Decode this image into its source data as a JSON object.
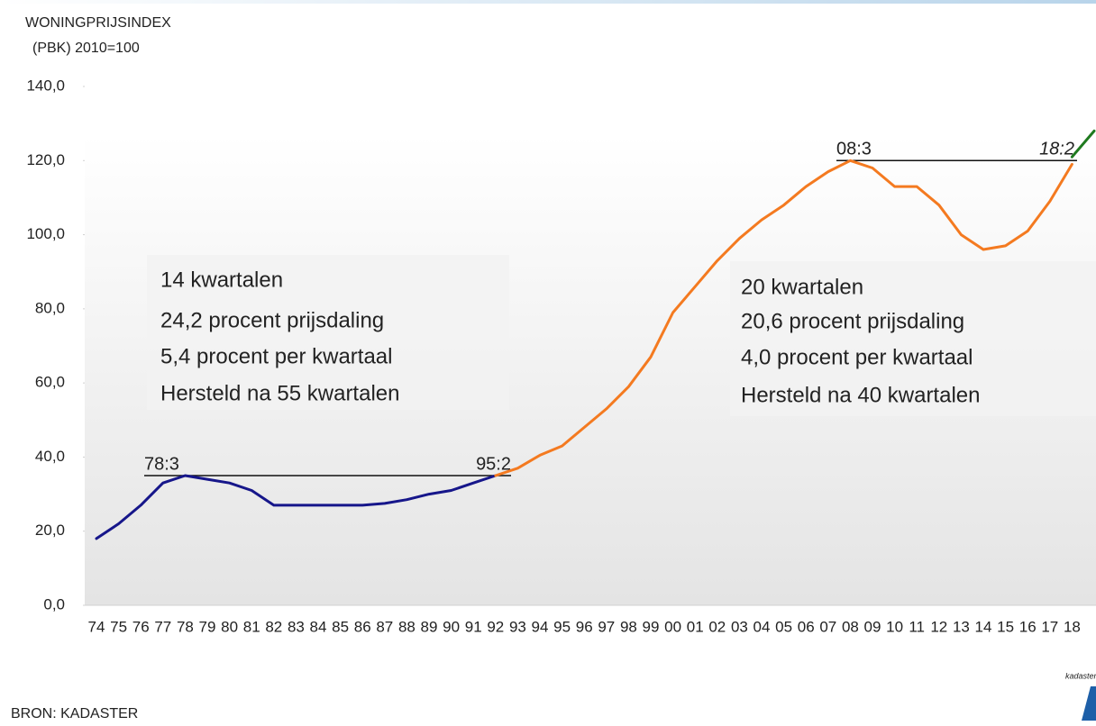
{
  "chart_data": {
    "type": "line",
    "axis_title_lines": [
      "WONINGPRIJSINDEX",
      "(PBK) 2010=100"
    ],
    "source": "BRON: KADASTER",
    "logo": "kadaster",
    "categories": [
      "74",
      "75",
      "76",
      "77",
      "78",
      "79",
      "80",
      "81",
      "82",
      "83",
      "84",
      "85",
      "86",
      "87",
      "88",
      "89",
      "90",
      "91",
      "92",
      "93",
      "94",
      "95",
      "96",
      "97",
      "98",
      "99",
      "00",
      "01",
      "02",
      "03",
      "04",
      "05",
      "06",
      "07",
      "08",
      "09",
      "10",
      "11",
      "12",
      "13",
      "14",
      "15",
      "16",
      "17",
      "18",
      null
    ],
    "series": [
      {
        "color": "#16168a",
        "values": [
          18,
          22,
          27,
          33,
          35,
          34,
          33,
          31,
          27,
          27,
          27,
          27,
          27,
          27.5,
          28.5,
          30,
          31,
          33,
          35,
          null,
          null,
          null,
          null,
          null,
          null,
          null,
          null,
          null,
          null,
          null,
          null,
          null,
          null,
          null,
          null,
          null,
          null,
          null,
          null,
          null,
          null,
          null,
          null,
          null,
          null,
          null
        ]
      },
      {
        "color": "#f47a20",
        "values": [
          null,
          null,
          null,
          null,
          null,
          null,
          null,
          null,
          null,
          null,
          null,
          null,
          null,
          null,
          null,
          null,
          null,
          null,
          35,
          37,
          40.5,
          43,
          48,
          53,
          59,
          67,
          79,
          86,
          93,
          99,
          104,
          108,
          113,
          117,
          120,
          118,
          113,
          113,
          108,
          100,
          96,
          97,
          101,
          109,
          119,
          null
        ]
      },
      {
        "color": "#1f7a1f",
        "values": [
          null,
          null,
          null,
          null,
          null,
          null,
          null,
          null,
          null,
          null,
          null,
          null,
          null,
          null,
          null,
          null,
          null,
          null,
          null,
          null,
          null,
          null,
          null,
          null,
          null,
          null,
          null,
          null,
          null,
          null,
          null,
          null,
          null,
          null,
          null,
          null,
          null,
          null,
          null,
          null,
          null,
          null,
          null,
          null,
          121,
          128
        ]
      }
    ],
    "ylim": [
      0,
      140
    ],
    "yticks": [
      {
        "value": 0,
        "label": "0,0"
      },
      {
        "value": 20,
        "label": "20,0"
      },
      {
        "value": 40,
        "label": "40,0"
      },
      {
        "value": 60,
        "label": "60,0"
      },
      {
        "value": 80,
        "label": "80,0"
      },
      {
        "value": 100,
        "label": "100,0"
      },
      {
        "value": 120,
        "label": "120,0"
      },
      {
        "value": 140,
        "label": "140,0"
      }
    ],
    "grid": false,
    "reference_lines": [
      {
        "value": 35,
        "start_label": "78:3",
        "end_label": "95:2"
      },
      {
        "value": 120,
        "start_label": "08:3",
        "end_label": "18:2"
      }
    ],
    "boxes": [
      {
        "lines": [
          "14 kwartalen",
          "24,2 procent prijsdaling",
          "5,4 procent per kwartaal",
          "Hersteld na 55 kwartalen"
        ]
      },
      {
        "lines": [
          "20 kwartalen",
          "20,6 procent prijsdaling",
          "4,0 procent per kwartaal",
          "Hersteld na 40 kwartalen"
        ]
      }
    ]
  }
}
